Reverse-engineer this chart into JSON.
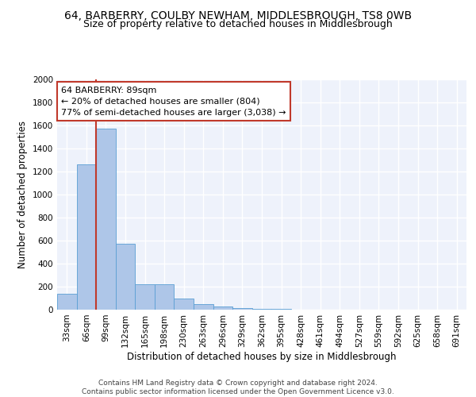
{
  "title_line1": "64, BARBERRY, COULBY NEWHAM, MIDDLESBROUGH, TS8 0WB",
  "title_line2": "Size of property relative to detached houses in Middlesbrough",
  "xlabel": "Distribution of detached houses by size in Middlesbrough",
  "ylabel": "Number of detached properties",
  "categories": [
    "33sqm",
    "66sqm",
    "99sqm",
    "132sqm",
    "165sqm",
    "198sqm",
    "230sqm",
    "263sqm",
    "296sqm",
    "329sqm",
    "362sqm",
    "395sqm",
    "428sqm",
    "461sqm",
    "494sqm",
    "527sqm",
    "559sqm",
    "592sqm",
    "625sqm",
    "658sqm",
    "691sqm"
  ],
  "bar_values": [
    140,
    1265,
    1570,
    570,
    220,
    220,
    95,
    50,
    25,
    15,
    10,
    10,
    0,
    0,
    0,
    0,
    0,
    0,
    0,
    0,
    0
  ],
  "bar_color": "#aec6e8",
  "bar_edge_color": "#5a9fd4",
  "property_bin_index": 2,
  "annotation_text": "64 BARBERRY: 89sqm\n← 20% of detached houses are smaller (804)\n77% of semi-detached houses are larger (3,038) →",
  "vline_color": "#c0392b",
  "box_edge_color": "#c0392b",
  "ylim": [
    0,
    2000
  ],
  "yticks": [
    0,
    200,
    400,
    600,
    800,
    1000,
    1200,
    1400,
    1600,
    1800,
    2000
  ],
  "background_color": "#eef2fb",
  "grid_color": "#ffffff",
  "footer_text": "Contains HM Land Registry data © Crown copyright and database right 2024.\nContains public sector information licensed under the Open Government Licence v3.0.",
  "title_fontsize": 10,
  "subtitle_fontsize": 9,
  "axis_label_fontsize": 8.5,
  "tick_fontsize": 7.5,
  "annotation_fontsize": 8,
  "footer_fontsize": 6.5
}
